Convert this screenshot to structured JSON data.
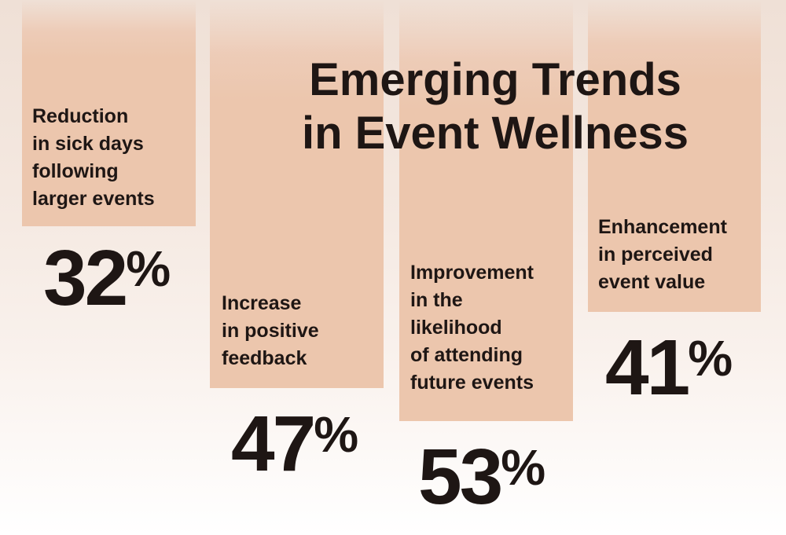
{
  "title": {
    "line1": "Emerging Trends",
    "line2": "in Event Wellness"
  },
  "stats": [
    {
      "value": "32",
      "unit": "%",
      "label_lines": [
        "Reduction",
        "in sick days",
        "following",
        "larger events"
      ]
    },
    {
      "value": "47",
      "unit": "%",
      "label_lines": [
        "Increase",
        "in positive",
        "feedback"
      ]
    },
    {
      "value": "53",
      "unit": "%",
      "label_lines": [
        "Improvement",
        "in the",
        "likelihood",
        "of attending",
        "future events"
      ]
    },
    {
      "value": "41",
      "unit": "%",
      "label_lines": [
        "Enhancement",
        "in perceived",
        "event value"
      ]
    }
  ],
  "colors": {
    "column": "#ecc6ad",
    "text": "#1e1614",
    "background_top": "#efe0d6",
    "background_bottom": "#ffffff"
  }
}
